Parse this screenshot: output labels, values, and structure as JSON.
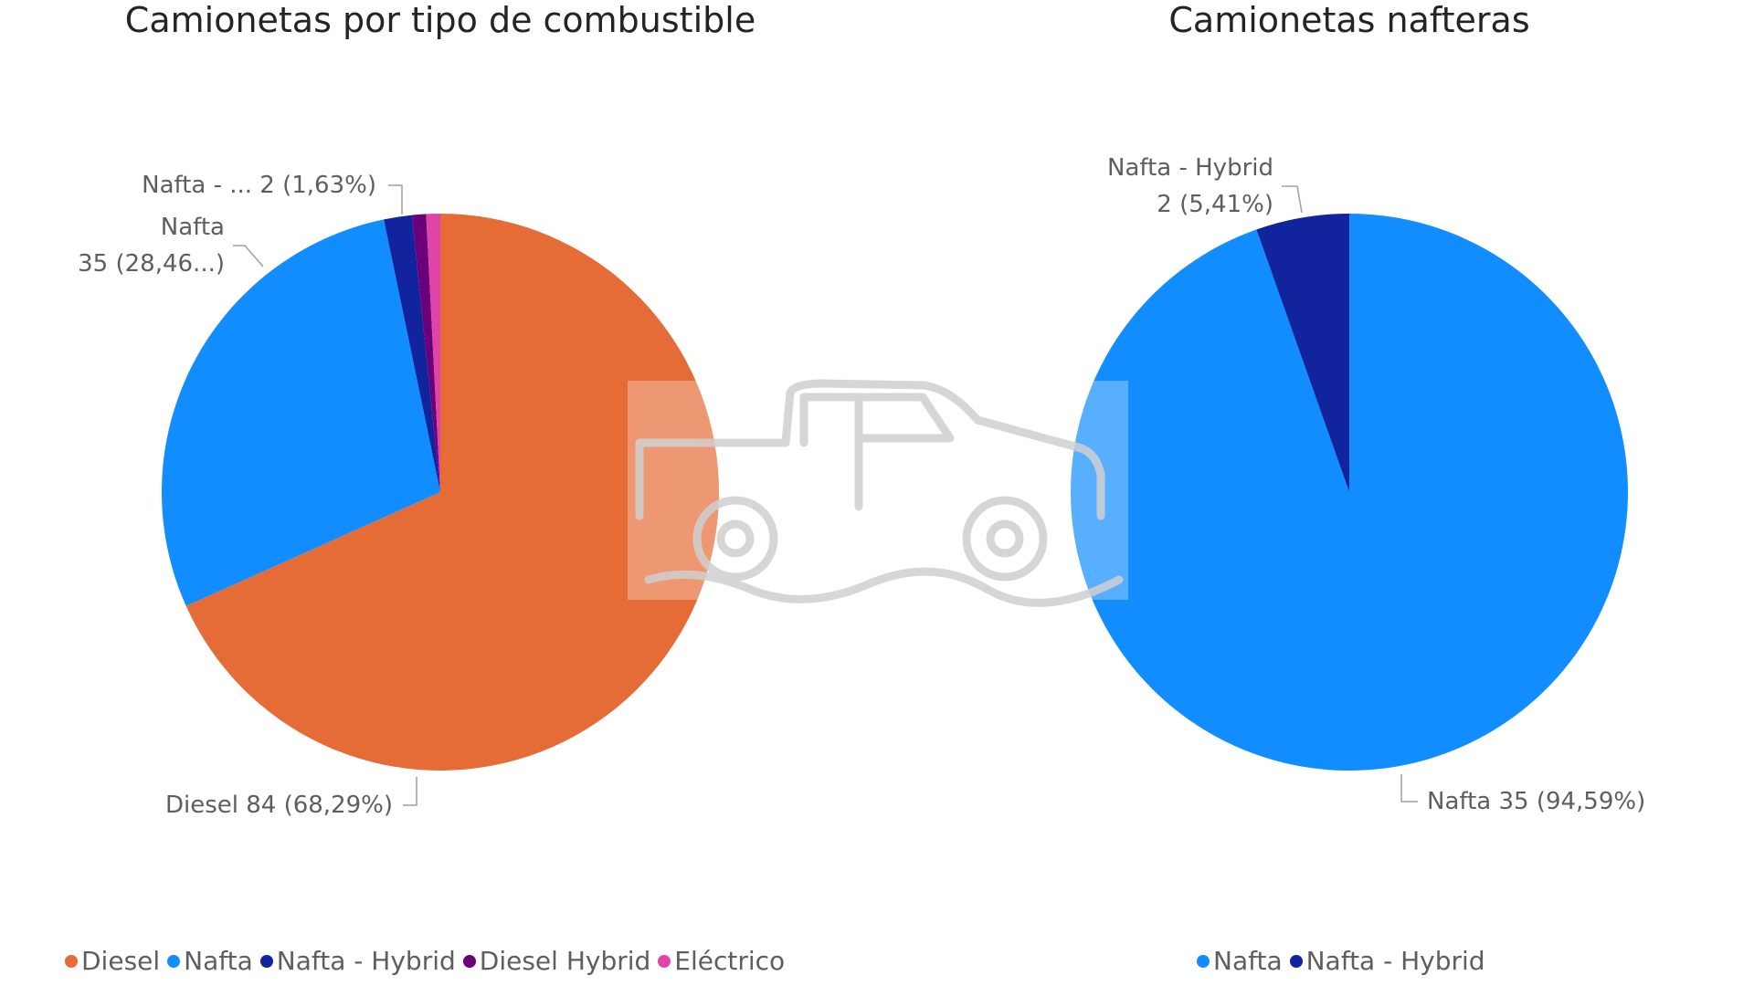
{
  "chart_data": [
    {
      "type": "pie",
      "title": "Camionetas por tipo de combustible",
      "categories": [
        "Diesel",
        "Nafta",
        "Nafta - Hybrid",
        "Diesel Hybrid",
        "Eléctrico"
      ],
      "values": [
        84,
        35,
        2,
        1,
        1
      ],
      "value_labels": [
        "Diesel 84 (68,29%)",
        "Nafta\n35 (28,46...)",
        "Nafta - ... 2 (1,63%)",
        null,
        null
      ],
      "colors": [
        "#E66C37",
        "#118DFF",
        "#12239E",
        "#6B007B",
        "#E044A7"
      ]
    },
    {
      "type": "pie",
      "title": "Camionetas nafteras",
      "categories": [
        "Nafta",
        "Nafta - Hybrid"
      ],
      "values": [
        35,
        2
      ],
      "value_labels": [
        "Nafta 35 (94,59%)",
        "Nafta - Hybrid\n2 (5,41%)"
      ],
      "colors": [
        "#118DFF",
        "#12239E"
      ]
    }
  ]
}
